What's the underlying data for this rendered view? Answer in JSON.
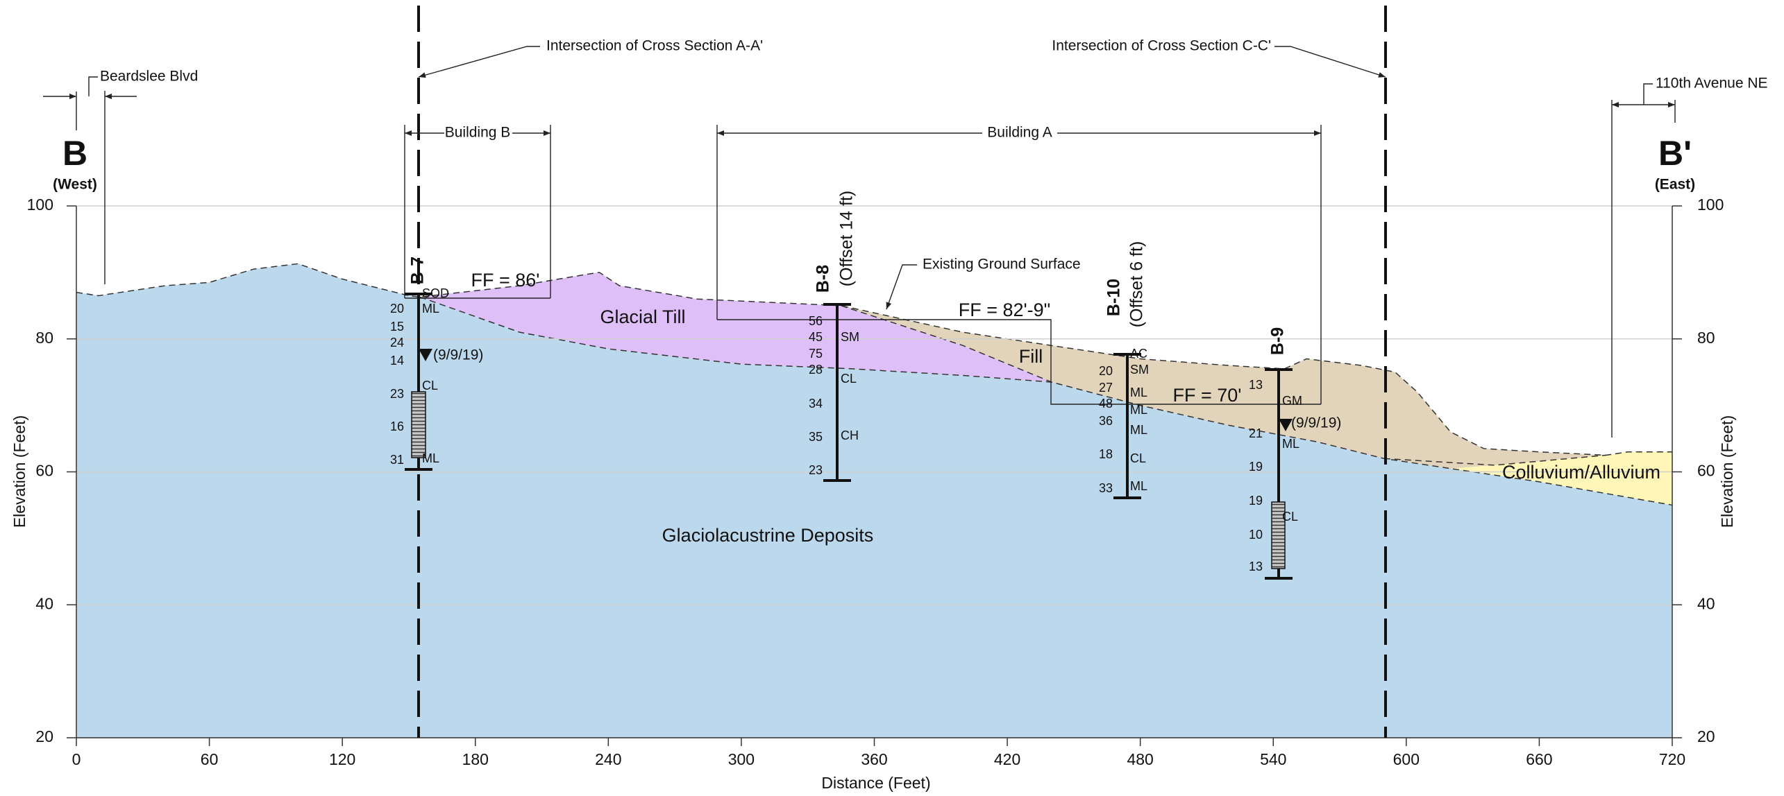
{
  "section": {
    "left": {
      "label": "B",
      "side": "(West)"
    },
    "right": {
      "label": "B'",
      "side": "(East)"
    }
  },
  "axes": {
    "x": {
      "label": "Distance (Feet)",
      "lim": [
        0,
        720
      ],
      "ticks": [
        0,
        60,
        120,
        180,
        240,
        300,
        360,
        420,
        480,
        540,
        600,
        660,
        720
      ]
    },
    "y": {
      "label": "Elevation (Feet)",
      "lim": [
        20,
        100
      ],
      "ticks": [
        20,
        40,
        60,
        80,
        100
      ]
    }
  },
  "annotations": {
    "intersection_a": "Intersection of Cross Section A-A'",
    "intersection_c": "Intersection of Cross Section C-C'",
    "street_west": "Beardslee Blvd",
    "street_east": "110th Avenue NE",
    "building_b": "Building B",
    "building_a": "Building A",
    "ff_b": "FF = 86'",
    "ff_a_upper": "FF = 82'-9\"",
    "ff_a_lower": "FF = 70'",
    "ground": "Existing Ground Surface"
  },
  "units": [
    "Glacial Till",
    "Fill",
    "Glaciolacustrine Deposits",
    "Colluvium/Alluvium"
  ],
  "borings": [
    {
      "name": "B-7",
      "blows": [
        20,
        15,
        24,
        14,
        23,
        16,
        31
      ],
      "soils": [
        "SOD",
        "ML",
        "CL",
        "ML"
      ],
      "water": "(9/9/19)"
    },
    {
      "name": "B-8",
      "offset": "(Offset 14 ft)",
      "blows": [
        56,
        45,
        75,
        28,
        34,
        35,
        23
      ],
      "soils": [
        "SM",
        "CL",
        "CH"
      ]
    },
    {
      "name": "B-10",
      "offset": "(Offset 6 ft)",
      "blows": [
        20,
        27,
        48,
        36,
        18,
        33
      ],
      "soils": [
        "AC",
        "SM",
        "ML",
        "ML",
        "ML",
        "CL",
        "ML"
      ]
    },
    {
      "name": "B-9",
      "blows": [
        13,
        21,
        19,
        19,
        10,
        13
      ],
      "soils": [
        "GM",
        "ML",
        "CL"
      ],
      "water": "(9/9/19)"
    }
  ]
}
